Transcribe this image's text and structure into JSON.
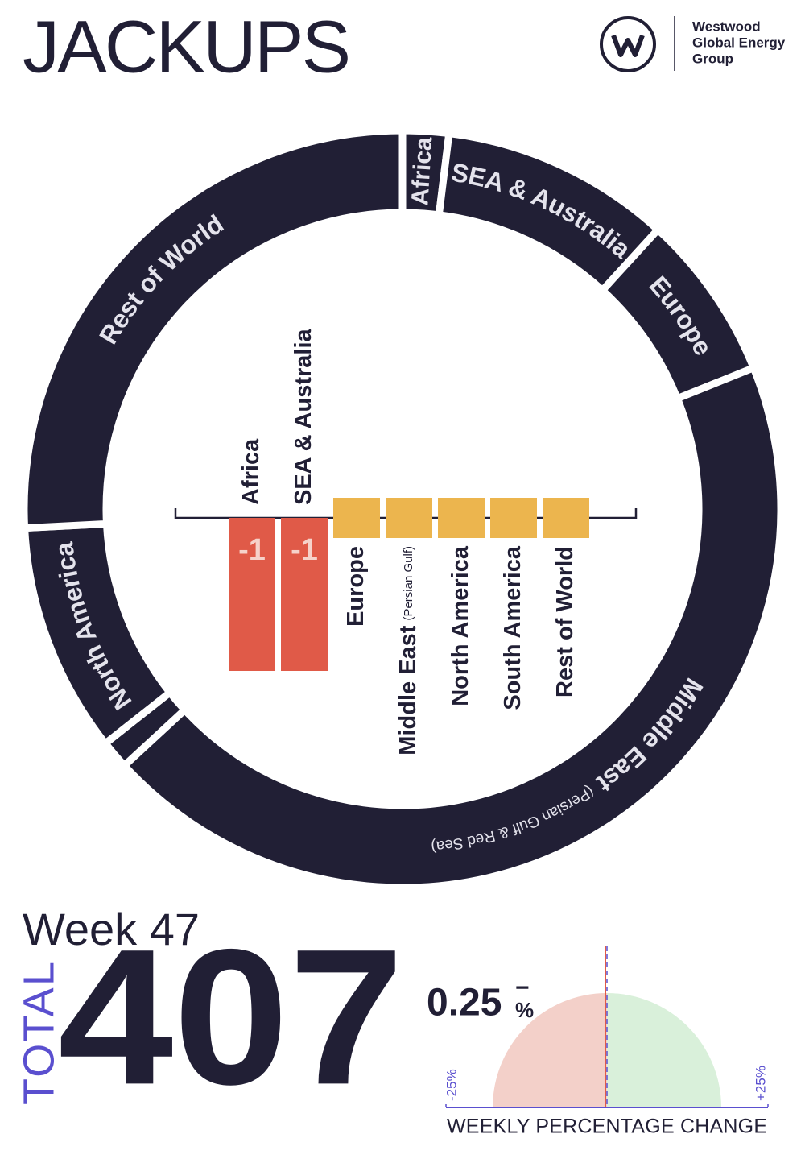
{
  "header": {
    "title": "JACKUPS",
    "company": [
      "Westwood",
      "Global Energy",
      "Group"
    ]
  },
  "chart_data": [
    {
      "type": "donut",
      "categories": [
        "Africa",
        "SEA & Australia",
        "Europe",
        "Middle East",
        null,
        "North America",
        "Rest of World"
      ],
      "label_notes": [
        null,
        null,
        null,
        "(Persian Gulf & Red Sea)",
        null,
        null,
        null
      ],
      "values": [
        8,
        40,
        29,
        180,
        5,
        40,
        105
      ],
      "color": "#211f35",
      "label_color": "#e4e3ec"
    },
    {
      "type": "bar",
      "categories": [
        "Africa",
        "SEA & Australia",
        "Europe",
        "Middle East",
        "North America",
        "South America",
        "Rest of World"
      ],
      "category_notes": [
        null,
        null,
        null,
        "(Persian Gulf)",
        null,
        null,
        null
      ],
      "values": [
        -1,
        -1,
        0,
        0,
        0,
        0,
        0
      ],
      "negative_color": "#e05a48",
      "zero_color": "#ecb54e"
    },
    {
      "type": "gauge",
      "value": -0.25,
      "value_label": "0.25",
      "sign": "−",
      "unit": "%",
      "xlim": [
        -25,
        25
      ],
      "xticks": [
        {
          "value": -25,
          "label": "-25%"
        },
        {
          "value": 25,
          "label": "+25%"
        }
      ],
      "title": "WEEKLY PERCENTAGE CHANGE",
      "negative_color": "#f3d0c9",
      "positive_color": "#d9f0da",
      "needle_color": "#e05a48",
      "axis_color": "#5a4fcf"
    }
  ],
  "summary": {
    "week": "Week 47",
    "total_label": "TOTAL",
    "total": 407
  }
}
